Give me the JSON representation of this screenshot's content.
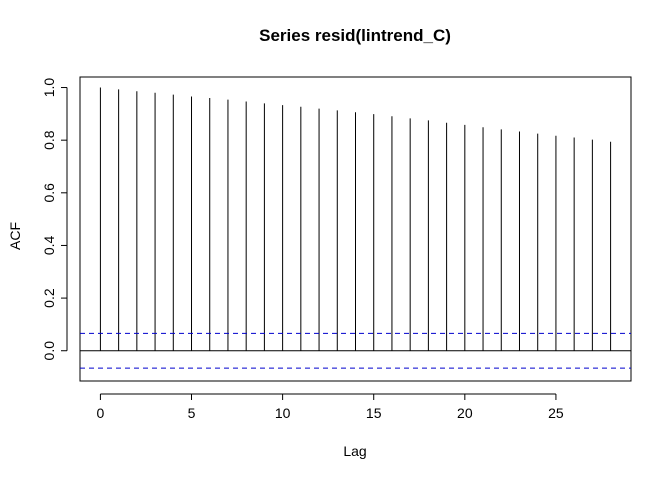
{
  "chart_data": {
    "type": "bar",
    "title": "Series  resid(lintrend_C)",
    "xlabel": "Lag",
    "ylabel": "ACF",
    "x": [
      0,
      1,
      2,
      3,
      4,
      5,
      6,
      7,
      8,
      9,
      10,
      11,
      12,
      13,
      14,
      15,
      16,
      17,
      18,
      19,
      20,
      21,
      22,
      23,
      24,
      25,
      26,
      27,
      28
    ],
    "values": [
      1.0,
      0.993,
      0.986,
      0.98,
      0.973,
      0.966,
      0.96,
      0.954,
      0.947,
      0.94,
      0.933,
      0.927,
      0.92,
      0.913,
      0.906,
      0.899,
      0.891,
      0.883,
      0.875,
      0.866,
      0.858,
      0.849,
      0.841,
      0.833,
      0.825,
      0.817,
      0.81,
      0.802,
      0.794
    ],
    "xlim": [
      -1.12,
      29.12
    ],
    "ylim": [
      -0.115,
      1.04
    ],
    "x_ticks": [
      0,
      5,
      10,
      15,
      20,
      25
    ],
    "y_ticks": [
      0.0,
      0.2,
      0.4,
      0.6,
      0.8,
      1.0
    ],
    "x_tick_labels": [
      "0",
      "5",
      "10",
      "15",
      "20",
      "25"
    ],
    "y_tick_labels": [
      "0.0",
      "0.2",
      "0.4",
      "0.6",
      "0.8",
      "1.0"
    ],
    "confidence_bound": 0.066,
    "colors": {
      "bars": "#000000",
      "confidence": "#0000cd",
      "zero_line": "#000000"
    },
    "grid": false,
    "legend": "none"
  }
}
